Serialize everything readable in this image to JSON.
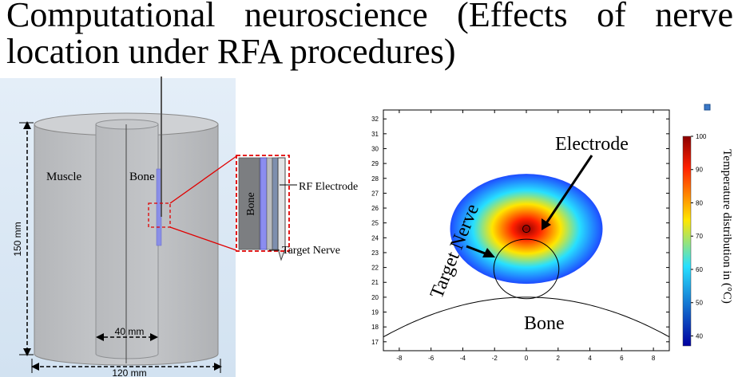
{
  "title": {
    "line1": "Computational neuroscience (Effects of nerve",
    "line2": "location under RFA procedures)"
  },
  "model": {
    "muscle_label": "Muscle",
    "bone_label": "Bone",
    "height_label": "150 mm",
    "bone_width_label": "40 mm",
    "outer_width_label": "120 mm"
  },
  "zoom": {
    "bone_label": "Bone",
    "electrode_label": "RF Electrode",
    "nerve_label": "Target Nerve"
  },
  "chart_data": {
    "type": "heatmap",
    "x_ticks": [
      -8,
      -6,
      -4,
      -2,
      0,
      2,
      4,
      6,
      8
    ],
    "y_ticks": [
      17,
      18,
      19,
      20,
      21,
      22,
      23,
      24,
      25,
      26,
      27,
      28,
      29,
      30,
      31,
      32
    ],
    "xlim": [
      -9,
      9
    ],
    "ylim": [
      16.4,
      32.6
    ],
    "annotations": {
      "electrode": "Electrode",
      "target_nerve": "Target Nerve",
      "bone": "Bone"
    },
    "colorbar": {
      "label": "Temperature distribution in (°C)",
      "ticks": [
        40,
        50,
        60,
        70,
        80,
        90,
        100
      ],
      "range": [
        37,
        100
      ]
    },
    "colors": {
      "hot": "#8b0000",
      "warm": "#ff2000",
      "mid": "#ffe600",
      "cool": "#27e0ff",
      "cold": "#0000a0"
    }
  }
}
